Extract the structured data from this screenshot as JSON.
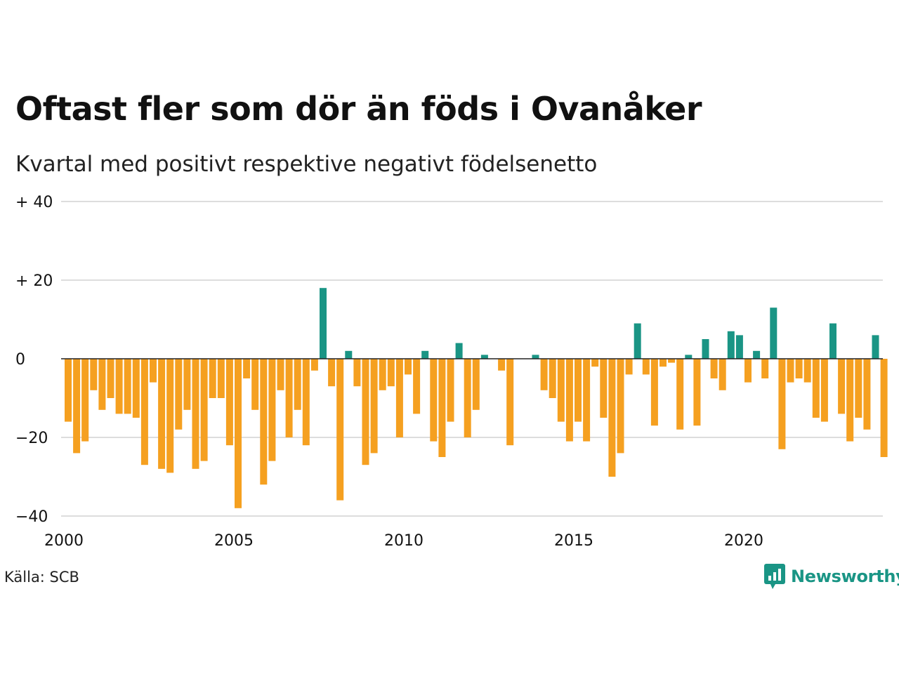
{
  "title": "Oftast fler som dör än föds i Ovanåker",
  "subtitle": "Kvartal med positivt respektive negativt födelsenetto",
  "source": "Källa: SCB",
  "brand": {
    "name": "Newsworthy",
    "icon": "newsworthy-logo-icon"
  },
  "colors": {
    "positive": "#1a9585",
    "negative": "#f5a020",
    "grid": "#dddddd",
    "zero": "#222222"
  },
  "chart_data": {
    "type": "bar",
    "x_start": "2000Q1",
    "ylim": [
      -40,
      40
    ],
    "y_ticks": [
      {
        "value": 40,
        "label": "+ 40"
      },
      {
        "value": 20,
        "label": "+ 20"
      },
      {
        "value": 0,
        "label": "0"
      },
      {
        "value": -20,
        "label": "−20"
      },
      {
        "value": -40,
        "label": "−40"
      }
    ],
    "x_ticks": [
      {
        "year": 2000,
        "label": "2000"
      },
      {
        "year": 2005,
        "label": "2005"
      },
      {
        "year": 2010,
        "label": "2010"
      },
      {
        "year": 2015,
        "label": "2015"
      },
      {
        "year": 2020,
        "label": "2020"
      }
    ],
    "values": [
      -16,
      -24,
      -21,
      -8,
      -13,
      -10,
      -14,
      -14,
      -15,
      -27,
      -6,
      -28,
      -29,
      -18,
      -13,
      -28,
      -26,
      -10,
      -10,
      -22,
      -38,
      -5,
      -13,
      -32,
      -26,
      -8,
      -20,
      -13,
      -22,
      -3,
      18,
      -7,
      -36,
      2,
      -7,
      -27,
      -24,
      -8,
      -7,
      -20,
      -4,
      -14,
      2,
      -21,
      -25,
      -16,
      4,
      -20,
      -13,
      1,
      0,
      -3,
      -22,
      0,
      0,
      1,
      -8,
      -10,
      -16,
      -21,
      -16,
      -21,
      -2,
      -15,
      -30,
      -24,
      -4,
      9,
      -4,
      -17,
      -2,
      -1,
      -18,
      1,
      -17,
      5,
      -5,
      -8,
      7,
      6,
      -6,
      2,
      -5,
      13,
      -23,
      -6,
      -5,
      -6,
      -15,
      -16,
      9,
      -14,
      -21,
      -15,
      -18,
      6,
      -25
    ]
  }
}
